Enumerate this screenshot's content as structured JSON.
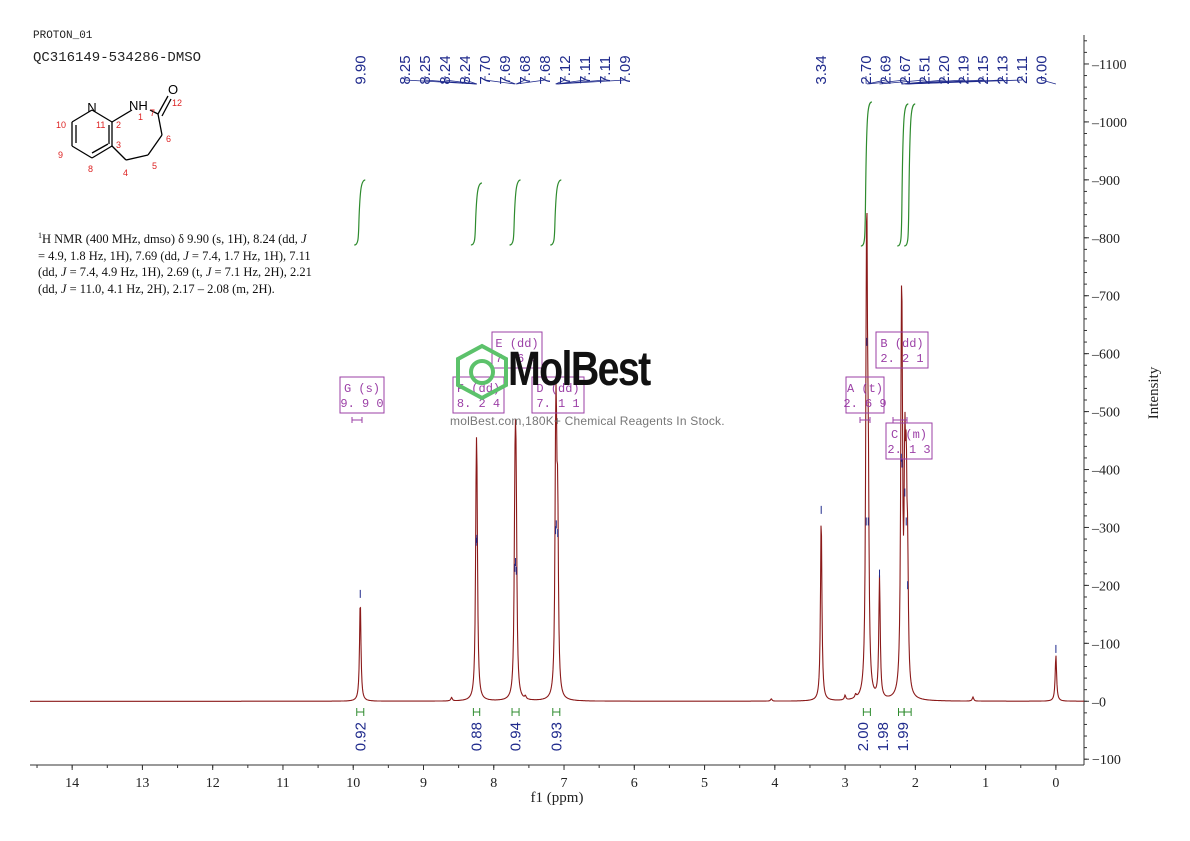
{
  "header": {
    "experiment": "PROTON_01",
    "sample": "QC316149-534286-DMSO"
  },
  "structure": {
    "atoms": {
      "N_ring": "N",
      "NH": "NH",
      "O": "O",
      "numbers": [
        "1",
        "2",
        "3",
        "4",
        "5",
        "6",
        "7",
        "8",
        "9",
        "10",
        "11",
        "12"
      ]
    }
  },
  "nmr_caption": {
    "superscript": "1",
    "line1a": "H NMR (400 MHz, dmso) δ 9.90 (s, 1H), 8.24 (dd, ",
    "line1b": "J",
    "line2": "= 4.9, 1.8 Hz, 1H), 7.69 (dd, ",
    "line2b": "J",
    "line2c": " = 7.4, 1.7 Hz, 1H), 7.11",
    "line3": "(dd, ",
    "line3b": "J",
    "line3c": " = 7.4, 4.9 Hz, 1H), 2.69 (t, ",
    "line3d": "J",
    "line3e": " = 7.1 Hz, 2H), 2.21",
    "line4": "(dd, ",
    "line4b": "J",
    "line4c": " = 11.0, 4.1 Hz, 2H), 2.17 – 2.08 (m, 2H)."
  },
  "watermark": {
    "brand": "MolBest",
    "tagline": "molBest.com,180K+ Chemical Reagents In Stock."
  },
  "colors": {
    "spectrum": "#8b1a1a",
    "peak_label": "#1f2a8c",
    "integral": "#2e8b2e",
    "multiplet_box": "#9b3fa6",
    "axis": "#333333",
    "watermark_green": "#5cc26b"
  },
  "chart_data": {
    "type": "line",
    "title": "",
    "xlabel": "f1 (ppm)",
    "ylabel": "Intensity",
    "xlim": [
      14.6,
      -0.4
    ],
    "ylim": [
      -110,
      1150
    ],
    "x_ticks": [
      14,
      13,
      12,
      11,
      10,
      9,
      8,
      7,
      6,
      5,
      4,
      3,
      2,
      1,
      0
    ],
    "y_ticks": [
      -100,
      0,
      100,
      200,
      300,
      400,
      500,
      600,
      700,
      800,
      900,
      1000,
      1100
    ],
    "peaks": [
      {
        "ppm": 9.9,
        "height": 175
      },
      {
        "ppm": 8.25,
        "height": 265
      },
      {
        "ppm": 8.24,
        "height": 270
      },
      {
        "ppm": 7.7,
        "height": 220
      },
      {
        "ppm": 7.69,
        "height": 230
      },
      {
        "ppm": 7.68,
        "height": 215
      },
      {
        "ppm": 7.12,
        "height": 285
      },
      {
        "ppm": 7.11,
        "height": 295
      },
      {
        "ppm": 7.09,
        "height": 280
      },
      {
        "ppm": 3.34,
        "height": 320
      },
      {
        "ppm": 2.7,
        "height": 300
      },
      {
        "ppm": 2.69,
        "height": 610
      },
      {
        "ppm": 2.67,
        "height": 300
      },
      {
        "ppm": 2.51,
        "height": 210
      },
      {
        "ppm": 2.2,
        "height": 410
      },
      {
        "ppm": 2.19,
        "height": 400
      },
      {
        "ppm": 2.15,
        "height": 350
      },
      {
        "ppm": 2.13,
        "height": 300
      },
      {
        "ppm": 2.11,
        "height": 190
      },
      {
        "ppm": 0.0,
        "height": 80
      }
    ],
    "minor_peaks": [
      {
        "ppm": 8.6,
        "height": 6
      },
      {
        "ppm": 7.55,
        "height": 5
      },
      {
        "ppm": 4.05,
        "height": 4
      },
      {
        "ppm": 3.0,
        "height": 8
      },
      {
        "ppm": 2.85,
        "height": 6
      },
      {
        "ppm": 1.18,
        "height": 7
      }
    ],
    "peak_labels_left": [
      "9.90"
    ],
    "peak_labels_aromatic": [
      "8.25",
      "8.25",
      "8.24",
      "8.24",
      "7.70",
      "7.69",
      "7.68",
      "7.68",
      "7.12",
      "7.11",
      "7.11",
      "7.09"
    ],
    "peak_labels_mid": [
      "3.34"
    ],
    "peak_labels_aliphatic": [
      "2.70",
      "2.69",
      "2.67",
      "2.51",
      "2.20",
      "2.19",
      "2.15",
      "2.13",
      "2.11",
      "0.00"
    ],
    "integrals": [
      {
        "from": 9.95,
        "to": 9.85,
        "value": "0.92"
      },
      {
        "from": 8.29,
        "to": 8.2,
        "value": "0.88"
      },
      {
        "from": 7.74,
        "to": 7.64,
        "value": "0.94"
      },
      {
        "from": 7.16,
        "to": 7.06,
        "value": "0.93"
      },
      {
        "from": 2.74,
        "to": 2.64,
        "value": "2.00"
      },
      {
        "from": 2.24,
        "to": 2.16,
        "value": "1.98"
      },
      {
        "from": 2.16,
        "to": 2.06,
        "value": "1.99"
      }
    ],
    "multiplets": [
      {
        "letter": "G",
        "type": "(s)",
        "shift": "9.90",
        "ppm": 9.9
      },
      {
        "letter": "F",
        "type": "(dd)",
        "shift": "8.24",
        "ppm": 8.24
      },
      {
        "letter": "E",
        "type": "(dd)",
        "shift": "7.69",
        "ppm": 7.69
      },
      {
        "letter": "D",
        "type": "(dd)",
        "shift": "7.11",
        "ppm": 7.11
      },
      {
        "letter": "A",
        "type": "(t)",
        "shift": "2.69",
        "ppm": 2.69
      },
      {
        "letter": "B",
        "type": "(dd)",
        "shift": "2.21",
        "ppm": 2.21
      },
      {
        "letter": "C",
        "type": "(m)",
        "shift": "2.13",
        "ppm": 2.13
      }
    ]
  }
}
